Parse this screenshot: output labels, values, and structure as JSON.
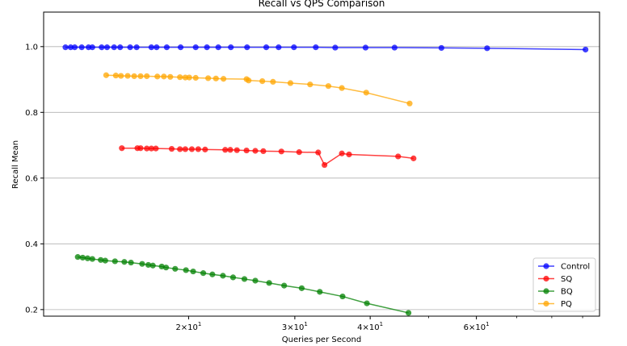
{
  "chart_data": {
    "type": "line",
    "title": "Recall vs QPS Comparison",
    "xlabel": "Queries per Second",
    "ylabel": "Recall Mean",
    "xscale": "log",
    "xlim": [
      11.5,
      96
    ],
    "ylim": [
      0.18,
      1.105
    ],
    "grid": "y",
    "legend_position": "bottom-right",
    "yticks": [
      0.2,
      0.4,
      0.6,
      0.8,
      1.0
    ],
    "ytick_labels": [
      "0.2",
      "0.4",
      "0.6",
      "0.8",
      "1.0"
    ],
    "xticks": [
      20,
      30,
      40,
      60
    ],
    "xtick_labels": [
      {
        "base": "2×10",
        "exp": "1"
      },
      {
        "base": "3×10",
        "exp": "1"
      },
      {
        "base": "4×10",
        "exp": "1"
      },
      {
        "base": "6×10",
        "exp": "1"
      }
    ],
    "series": [
      {
        "name": "Control",
        "color": "#0000ff",
        "points": [
          [
            12.5,
            0.998
          ],
          [
            12.75,
            0.998
          ],
          [
            12.95,
            0.998
          ],
          [
            13.3,
            0.998
          ],
          [
            13.65,
            0.998
          ],
          [
            13.85,
            0.998
          ],
          [
            14.35,
            0.998
          ],
          [
            14.65,
            0.998
          ],
          [
            15.05,
            0.998
          ],
          [
            15.4,
            0.998
          ],
          [
            16.0,
            0.998
          ],
          [
            16.4,
            0.998
          ],
          [
            17.35,
            0.998
          ],
          [
            17.7,
            0.998
          ],
          [
            18.4,
            0.998
          ],
          [
            19.4,
            0.998
          ],
          [
            20.55,
            0.998
          ],
          [
            21.45,
            0.998
          ],
          [
            22.4,
            0.998
          ],
          [
            23.5,
            0.998
          ],
          [
            25.0,
            0.998
          ],
          [
            26.9,
            0.998
          ],
          [
            28.2,
            0.998
          ],
          [
            29.9,
            0.998
          ],
          [
            32.5,
            0.998
          ],
          [
            35.0,
            0.997
          ],
          [
            39.3,
            0.997
          ],
          [
            43.9,
            0.997
          ],
          [
            52.5,
            0.996
          ],
          [
            62.5,
            0.995
          ],
          [
            91.0,
            0.991
          ]
        ]
      },
      {
        "name": "SQ",
        "color": "#ff0000",
        "points": [
          [
            15.5,
            0.691
          ],
          [
            16.45,
            0.691
          ],
          [
            16.65,
            0.691
          ],
          [
            17.05,
            0.69
          ],
          [
            17.35,
            0.69
          ],
          [
            17.65,
            0.69
          ],
          [
            18.75,
            0.689
          ],
          [
            19.35,
            0.688
          ],
          [
            19.75,
            0.688
          ],
          [
            20.25,
            0.688
          ],
          [
            20.75,
            0.688
          ],
          [
            21.3,
            0.687
          ],
          [
            23.0,
            0.686
          ],
          [
            23.45,
            0.686
          ],
          [
            24.05,
            0.685
          ],
          [
            24.95,
            0.684
          ],
          [
            25.8,
            0.683
          ],
          [
            26.6,
            0.682
          ],
          [
            28.5,
            0.681
          ],
          [
            30.5,
            0.679
          ],
          [
            32.8,
            0.678
          ],
          [
            33.6,
            0.64
          ],
          [
            35.9,
            0.675
          ],
          [
            36.9,
            0.672
          ],
          [
            44.5,
            0.666
          ],
          [
            47.2,
            0.66
          ]
        ]
      },
      {
        "name": "BQ",
        "color": "#008000",
        "points": [
          [
            13.1,
            0.36
          ],
          [
            13.35,
            0.358
          ],
          [
            13.6,
            0.356
          ],
          [
            13.85,
            0.354
          ],
          [
            14.3,
            0.351
          ],
          [
            14.55,
            0.349
          ],
          [
            15.1,
            0.347
          ],
          [
            15.65,
            0.345
          ],
          [
            16.05,
            0.343
          ],
          [
            16.75,
            0.339
          ],
          [
            17.15,
            0.336
          ],
          [
            17.45,
            0.334
          ],
          [
            18.05,
            0.331
          ],
          [
            18.35,
            0.328
          ],
          [
            19.0,
            0.324
          ],
          [
            19.8,
            0.32
          ],
          [
            20.35,
            0.316
          ],
          [
            21.15,
            0.311
          ],
          [
            21.9,
            0.307
          ],
          [
            22.8,
            0.303
          ],
          [
            23.7,
            0.298
          ],
          [
            24.75,
            0.293
          ],
          [
            25.8,
            0.288
          ],
          [
            27.2,
            0.281
          ],
          [
            28.8,
            0.273
          ],
          [
            30.8,
            0.265
          ],
          [
            33.0,
            0.254
          ],
          [
            36.0,
            0.24
          ],
          [
            39.5,
            0.219
          ],
          [
            46.3,
            0.19
          ]
        ]
      },
      {
        "name": "PQ",
        "color": "#ffa500",
        "points": [
          [
            14.6,
            0.913
          ],
          [
            15.15,
            0.912
          ],
          [
            15.45,
            0.911
          ],
          [
            15.85,
            0.911
          ],
          [
            16.25,
            0.91
          ],
          [
            16.65,
            0.91
          ],
          [
            17.05,
            0.91
          ],
          [
            17.75,
            0.909
          ],
          [
            18.2,
            0.909
          ],
          [
            18.65,
            0.908
          ],
          [
            19.35,
            0.907
          ],
          [
            19.75,
            0.906
          ],
          [
            20.05,
            0.906
          ],
          [
            20.55,
            0.905
          ],
          [
            21.55,
            0.904
          ],
          [
            22.2,
            0.903
          ],
          [
            22.85,
            0.902
          ],
          [
            24.95,
            0.901
          ],
          [
            25.15,
            0.897
          ],
          [
            26.5,
            0.895
          ],
          [
            27.6,
            0.893
          ],
          [
            29.5,
            0.889
          ],
          [
            31.8,
            0.885
          ],
          [
            34.1,
            0.88
          ],
          [
            35.9,
            0.874
          ],
          [
            39.4,
            0.86
          ],
          [
            46.5,
            0.827
          ]
        ]
      }
    ]
  }
}
